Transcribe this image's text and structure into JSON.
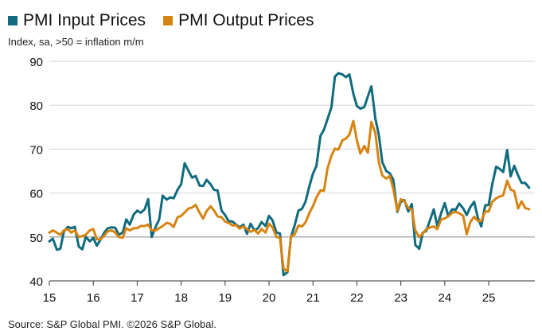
{
  "chart_data": {
    "type": "line",
    "subtitle": "Index, sa, >50 = inflation m/m",
    "source": "Source: S&P Global PMI. ©2026 S&P Global.",
    "ylim": [
      40,
      90
    ],
    "yticks": [
      40,
      50,
      60,
      70,
      80,
      90
    ],
    "xlim": [
      2015.0,
      2026.05
    ],
    "xticks": [
      {
        "label": "15",
        "x": 2015.0
      },
      {
        "label": "16",
        "x": 2016.0
      },
      {
        "label": "17",
        "x": 2017.0
      },
      {
        "label": "18",
        "x": 2018.0
      },
      {
        "label": "19",
        "x": 2019.0
      },
      {
        "label": "20",
        "x": 2020.0
      },
      {
        "label": "21",
        "x": 2021.0
      },
      {
        "label": "22",
        "x": 2022.0
      },
      {
        "label": "23",
        "x": 2023.0
      },
      {
        "label": "24",
        "x": 2024.0
      },
      {
        "label": "25",
        "x": 2025.0
      }
    ],
    "grid": "horizontal",
    "legend_position": "top-left",
    "series": [
      {
        "name": "PMI Input Prices",
        "color": "#0f6b7d",
        "points": [
          [
            2015.0,
            49.0
          ],
          [
            2015.08,
            49.6
          ],
          [
            2015.17,
            47.1
          ],
          [
            2015.25,
            47.3
          ],
          [
            2015.33,
            51.2
          ],
          [
            2015.42,
            52.3
          ],
          [
            2015.5,
            52.0
          ],
          [
            2015.58,
            52.3
          ],
          [
            2015.67,
            47.8
          ],
          [
            2015.75,
            47.2
          ],
          [
            2015.83,
            50.0
          ],
          [
            2015.92,
            49.0
          ],
          [
            2016.0,
            49.8
          ],
          [
            2016.08,
            48.0
          ],
          [
            2016.17,
            49.5
          ],
          [
            2016.25,
            51.0
          ],
          [
            2016.33,
            52.0
          ],
          [
            2016.42,
            52.2
          ],
          [
            2016.5,
            52.1
          ],
          [
            2016.58,
            50.5
          ],
          [
            2016.67,
            51.0
          ],
          [
            2016.75,
            54.0
          ],
          [
            2016.83,
            52.8
          ],
          [
            2016.92,
            55.1
          ],
          [
            2017.0,
            56.0
          ],
          [
            2017.08,
            55.5
          ],
          [
            2017.17,
            56.3
          ],
          [
            2017.25,
            58.6
          ],
          [
            2017.33,
            50.0
          ],
          [
            2017.42,
            52.3
          ],
          [
            2017.5,
            54.0
          ],
          [
            2017.58,
            59.4
          ],
          [
            2017.67,
            58.5
          ],
          [
            2017.75,
            59.0
          ],
          [
            2017.83,
            58.8
          ],
          [
            2017.92,
            60.8
          ],
          [
            2018.0,
            62.0
          ],
          [
            2018.08,
            66.8
          ],
          [
            2018.17,
            65.0
          ],
          [
            2018.25,
            63.5
          ],
          [
            2018.33,
            63.9
          ],
          [
            2018.42,
            61.7
          ],
          [
            2018.5,
            61.6
          ],
          [
            2018.58,
            63.0
          ],
          [
            2018.67,
            62.0
          ],
          [
            2018.75,
            60.7
          ],
          [
            2018.83,
            60.6
          ],
          [
            2018.92,
            56.0
          ],
          [
            2019.0,
            55.0
          ],
          [
            2019.08,
            53.6
          ],
          [
            2019.17,
            53.5
          ],
          [
            2019.25,
            52.8
          ],
          [
            2019.33,
            52.2
          ],
          [
            2019.42,
            52.8
          ],
          [
            2019.5,
            50.7
          ],
          [
            2019.58,
            53.0
          ],
          [
            2019.67,
            51.5
          ],
          [
            2019.75,
            52.0
          ],
          [
            2019.83,
            53.4
          ],
          [
            2019.92,
            52.5
          ],
          [
            2020.0,
            54.8
          ],
          [
            2020.08,
            53.8
          ],
          [
            2020.17,
            51.0
          ],
          [
            2020.25,
            50.8
          ],
          [
            2020.33,
            41.3
          ],
          [
            2020.42,
            42.0
          ],
          [
            2020.5,
            50.0
          ],
          [
            2020.58,
            52.5
          ],
          [
            2020.67,
            56.0
          ],
          [
            2020.75,
            56.4
          ],
          [
            2020.83,
            58.0
          ],
          [
            2020.92,
            61.6
          ],
          [
            2021.0,
            64.4
          ],
          [
            2021.08,
            66.2
          ],
          [
            2021.17,
            73.0
          ],
          [
            2021.25,
            74.4
          ],
          [
            2021.33,
            76.8
          ],
          [
            2021.42,
            79.5
          ],
          [
            2021.5,
            86.5
          ],
          [
            2021.58,
            87.3
          ],
          [
            2021.67,
            87.0
          ],
          [
            2021.75,
            86.4
          ],
          [
            2021.83,
            87.0
          ],
          [
            2021.92,
            82.6
          ],
          [
            2022.0,
            79.8
          ],
          [
            2022.08,
            79.2
          ],
          [
            2022.17,
            79.6
          ],
          [
            2022.25,
            82.0
          ],
          [
            2022.33,
            84.3
          ],
          [
            2022.42,
            77.0
          ],
          [
            2022.5,
            73.2
          ],
          [
            2022.58,
            67.0
          ],
          [
            2022.67,
            65.0
          ],
          [
            2022.75,
            64.5
          ],
          [
            2022.83,
            63.0
          ],
          [
            2022.92,
            55.7
          ],
          [
            2023.0,
            58.0
          ],
          [
            2023.08,
            58.4
          ],
          [
            2023.17,
            55.8
          ],
          [
            2023.25,
            57.5
          ],
          [
            2023.33,
            48.2
          ],
          [
            2023.42,
            47.3
          ],
          [
            2023.5,
            51.0
          ],
          [
            2023.58,
            51.4
          ],
          [
            2023.67,
            54.0
          ],
          [
            2023.75,
            56.3
          ],
          [
            2023.83,
            52.5
          ],
          [
            2023.92,
            55.5
          ],
          [
            2024.0,
            57.7
          ],
          [
            2024.08,
            54.8
          ],
          [
            2024.17,
            56.3
          ],
          [
            2024.25,
            56.2
          ],
          [
            2024.33,
            57.6
          ],
          [
            2024.42,
            56.5
          ],
          [
            2024.5,
            55.0
          ],
          [
            2024.58,
            56.8
          ],
          [
            2024.67,
            58.0
          ],
          [
            2024.75,
            54.5
          ],
          [
            2024.83,
            52.4
          ],
          [
            2024.92,
            57.2
          ],
          [
            2025.0,
            57.3
          ],
          [
            2025.08,
            62.0
          ],
          [
            2025.17,
            66.0
          ],
          [
            2025.25,
            65.5
          ],
          [
            2025.33,
            64.8
          ],
          [
            2025.42,
            69.8
          ],
          [
            2025.5,
            63.8
          ],
          [
            2025.58,
            66.2
          ],
          [
            2025.67,
            64.0
          ],
          [
            2025.75,
            62.3
          ],
          [
            2025.83,
            62.3
          ],
          [
            2025.92,
            61.2
          ]
        ]
      },
      {
        "name": "PMI Output Prices",
        "color": "#d7830f",
        "points": [
          [
            2015.0,
            51.0
          ],
          [
            2015.08,
            51.5
          ],
          [
            2015.17,
            51.0
          ],
          [
            2015.25,
            50.5
          ],
          [
            2015.33,
            51.5
          ],
          [
            2015.42,
            51.8
          ],
          [
            2015.5,
            51.0
          ],
          [
            2015.58,
            51.5
          ],
          [
            2015.67,
            50.0
          ],
          [
            2015.75,
            50.2
          ],
          [
            2015.83,
            50.5
          ],
          [
            2015.92,
            51.5
          ],
          [
            2016.0,
            51.8
          ],
          [
            2016.08,
            49.5
          ],
          [
            2016.17,
            49.5
          ],
          [
            2016.25,
            50.3
          ],
          [
            2016.33,
            51.3
          ],
          [
            2016.42,
            51.5
          ],
          [
            2016.5,
            51.0
          ],
          [
            2016.58,
            50.0
          ],
          [
            2016.67,
            49.8
          ],
          [
            2016.75,
            52.0
          ],
          [
            2016.83,
            51.5
          ],
          [
            2016.92,
            52.0
          ],
          [
            2017.0,
            52.0
          ],
          [
            2017.08,
            52.5
          ],
          [
            2017.17,
            52.5
          ],
          [
            2017.25,
            52.8
          ],
          [
            2017.33,
            51.5
          ],
          [
            2017.42,
            51.5
          ],
          [
            2017.5,
            52.0
          ],
          [
            2017.58,
            52.5
          ],
          [
            2017.67,
            53.2
          ],
          [
            2017.75,
            53.0
          ],
          [
            2017.83,
            52.3
          ],
          [
            2017.92,
            54.5
          ],
          [
            2018.0,
            54.8
          ],
          [
            2018.08,
            55.6
          ],
          [
            2018.17,
            56.5
          ],
          [
            2018.25,
            56.7
          ],
          [
            2018.33,
            57.3
          ],
          [
            2018.42,
            55.5
          ],
          [
            2018.5,
            54.2
          ],
          [
            2018.58,
            55.9
          ],
          [
            2018.67,
            57.0
          ],
          [
            2018.75,
            56.0
          ],
          [
            2018.83,
            54.7
          ],
          [
            2018.92,
            54.5
          ],
          [
            2019.0,
            53.5
          ],
          [
            2019.08,
            53.2
          ],
          [
            2019.17,
            52.6
          ],
          [
            2019.25,
            52.7
          ],
          [
            2019.33,
            51.9
          ],
          [
            2019.42,
            52.4
          ],
          [
            2019.5,
            51.8
          ],
          [
            2019.58,
            51.2
          ],
          [
            2019.67,
            51.6
          ],
          [
            2019.75,
            50.8
          ],
          [
            2019.83,
            51.8
          ],
          [
            2019.92,
            51.0
          ],
          [
            2020.0,
            53.0
          ],
          [
            2020.08,
            52.2
          ],
          [
            2020.17,
            50.0
          ],
          [
            2020.25,
            49.8
          ],
          [
            2020.33,
            42.8
          ],
          [
            2020.42,
            42.2
          ],
          [
            2020.5,
            50.2
          ],
          [
            2020.58,
            50.5
          ],
          [
            2020.67,
            52.6
          ],
          [
            2020.75,
            52.4
          ],
          [
            2020.83,
            53.3
          ],
          [
            2020.92,
            55.5
          ],
          [
            2021.0,
            57.0
          ],
          [
            2021.08,
            59.0
          ],
          [
            2021.17,
            60.6
          ],
          [
            2021.25,
            60.5
          ],
          [
            2021.33,
            65.5
          ],
          [
            2021.42,
            68.5
          ],
          [
            2021.5,
            70.1
          ],
          [
            2021.58,
            69.9
          ],
          [
            2021.67,
            72.0
          ],
          [
            2021.75,
            72.4
          ],
          [
            2021.83,
            73.3
          ],
          [
            2021.92,
            76.4
          ],
          [
            2022.0,
            72.0
          ],
          [
            2022.08,
            69.0
          ],
          [
            2022.17,
            70.7
          ],
          [
            2022.25,
            69.2
          ],
          [
            2022.33,
            76.2
          ],
          [
            2022.42,
            73.7
          ],
          [
            2022.5,
            67.0
          ],
          [
            2022.58,
            64.0
          ],
          [
            2022.67,
            63.3
          ],
          [
            2022.75,
            63.9
          ],
          [
            2022.83,
            60.9
          ],
          [
            2022.92,
            56.0
          ],
          [
            2023.0,
            58.6
          ],
          [
            2023.08,
            58.2
          ],
          [
            2023.17,
            56.6
          ],
          [
            2023.25,
            56.3
          ],
          [
            2023.33,
            51.5
          ],
          [
            2023.42,
            50.0
          ],
          [
            2023.5,
            50.8
          ],
          [
            2023.58,
            51.8
          ],
          [
            2023.67,
            52.2
          ],
          [
            2023.75,
            52.4
          ],
          [
            2023.83,
            51.8
          ],
          [
            2023.92,
            54.0
          ],
          [
            2024.0,
            54.2
          ],
          [
            2024.08,
            54.7
          ],
          [
            2024.17,
            55.5
          ],
          [
            2024.25,
            55.7
          ],
          [
            2024.33,
            55.4
          ],
          [
            2024.42,
            54.8
          ],
          [
            2024.5,
            50.6
          ],
          [
            2024.58,
            53.4
          ],
          [
            2024.67,
            54.6
          ],
          [
            2024.75,
            53.7
          ],
          [
            2024.83,
            53.6
          ],
          [
            2024.92,
            55.8
          ],
          [
            2025.0,
            55.8
          ],
          [
            2025.08,
            58.0
          ],
          [
            2025.17,
            58.8
          ],
          [
            2025.25,
            59.2
          ],
          [
            2025.33,
            59.5
          ],
          [
            2025.42,
            62.8
          ],
          [
            2025.5,
            60.8
          ],
          [
            2025.58,
            60.4
          ],
          [
            2025.67,
            56.5
          ],
          [
            2025.75,
            58.1
          ],
          [
            2025.83,
            56.6
          ],
          [
            2025.92,
            56.3
          ]
        ]
      }
    ]
  }
}
